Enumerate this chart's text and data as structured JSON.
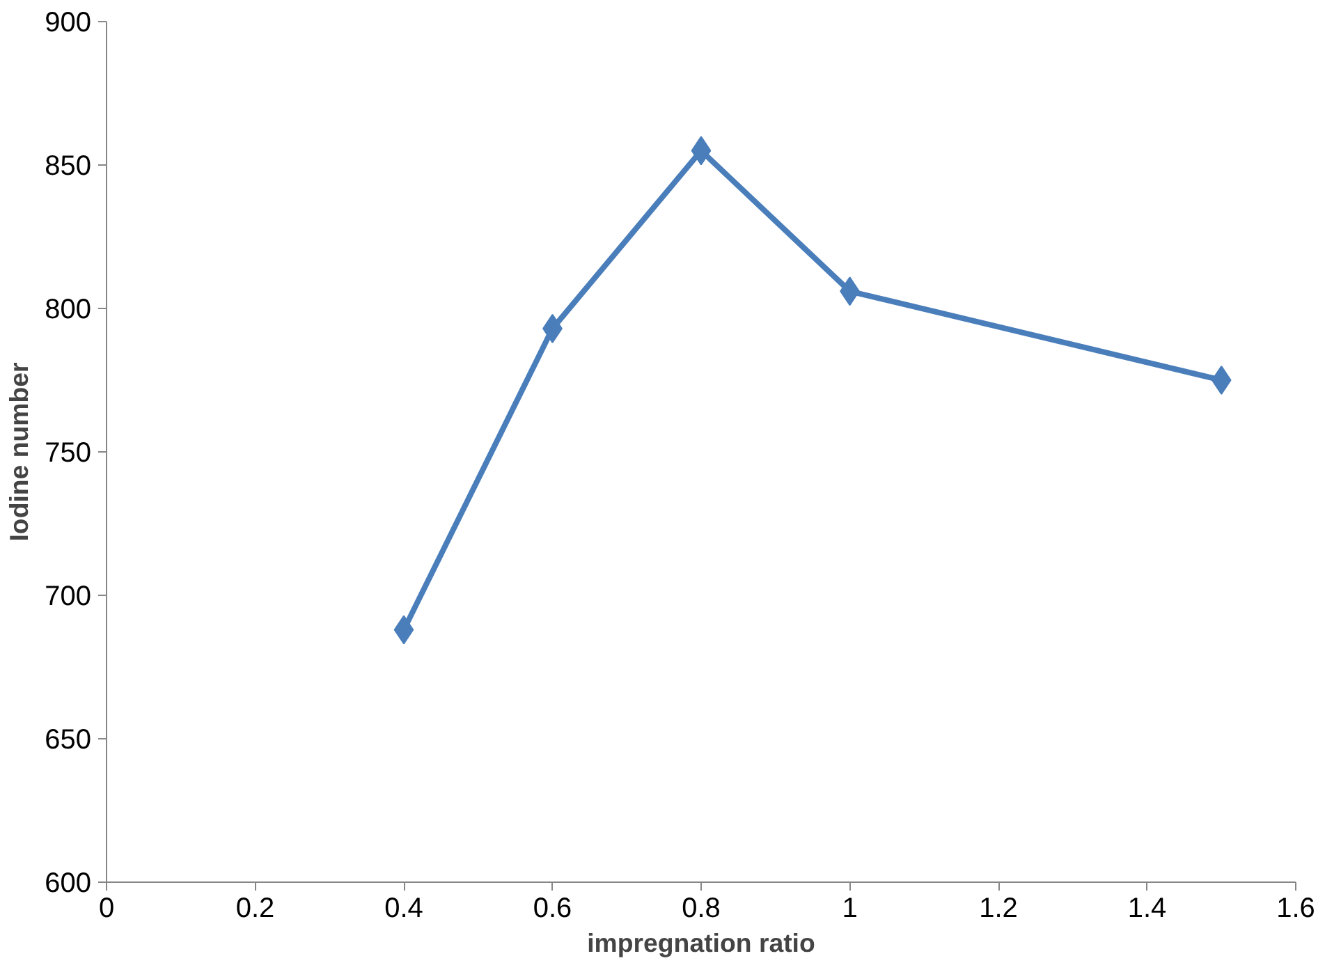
{
  "chart_data": {
    "type": "line",
    "xlabel": "impregnation ratio",
    "ylabel": "Iodine number",
    "x": [
      0.4,
      0.6,
      0.8,
      1,
      1.5
    ],
    "series": [
      {
        "color": "#4a7ebb",
        "values": [
          688,
          793,
          855,
          806,
          775
        ]
      }
    ],
    "xlim": [
      0,
      1.6
    ],
    "xticks": [
      0,
      0.2,
      0.4,
      0.6,
      0.8,
      1,
      1.2,
      1.4,
      1.6
    ],
    "ylim": [
      600,
      900
    ],
    "yticks": [
      600,
      650,
      700,
      750,
      800,
      850,
      900
    ],
    "grid": false,
    "marker": "diamond",
    "line_style": "solid"
  }
}
